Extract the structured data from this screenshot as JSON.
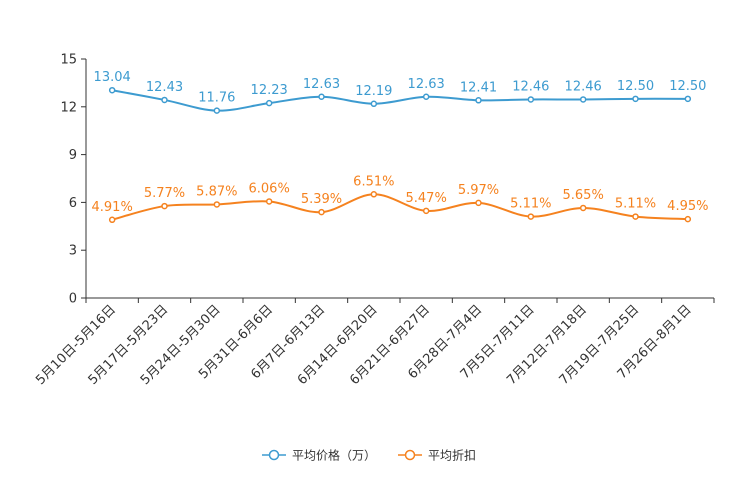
{
  "chart_data": {
    "type": "line",
    "title": "",
    "xlabel": "",
    "ylabel": "",
    "ylim": [
      0,
      15
    ],
    "yticks": [
      0,
      3,
      6,
      9,
      12,
      15
    ],
    "grid": false,
    "legend_position": "bottom-center",
    "categories": [
      "5月10日-5月16日",
      "5月17日-5月23日",
      "5月24日-5月30日",
      "5月31日-6月6日",
      "6月7日-6月13日",
      "6月14日-6月20日",
      "6月21日-6月27日",
      "6月28日-7月4日",
      "7月5日-7月11日",
      "7月12日-7月18日",
      "7月19日-7月25日",
      "7月26日-8月1日"
    ],
    "series": [
      {
        "name": "平均价格（万）",
        "color": "#3d9bd0",
        "values": [
          13.04,
          12.43,
          11.76,
          12.23,
          12.63,
          12.19,
          12.63,
          12.41,
          12.46,
          12.46,
          12.5,
          12.5
        ],
        "labels": [
          "13.04",
          "12.43",
          "11.76",
          "12.23",
          "12.63",
          "12.19",
          "12.63",
          "12.41",
          "12.46",
          "12.46",
          "12.50",
          "12.50"
        ]
      },
      {
        "name": "平均折扣",
        "color": "#f5821f",
        "values": [
          4.91,
          5.77,
          5.87,
          6.06,
          5.39,
          6.51,
          5.47,
          5.97,
          5.11,
          5.65,
          5.11,
          4.95
        ],
        "labels": [
          "4.91%",
          "5.77%",
          "5.87%",
          "6.06%",
          "5.39%",
          "6.51%",
          "5.47%",
          "5.97%",
          "5.11%",
          "5.65%",
          "5.11%",
          "4.95%"
        ]
      }
    ]
  }
}
